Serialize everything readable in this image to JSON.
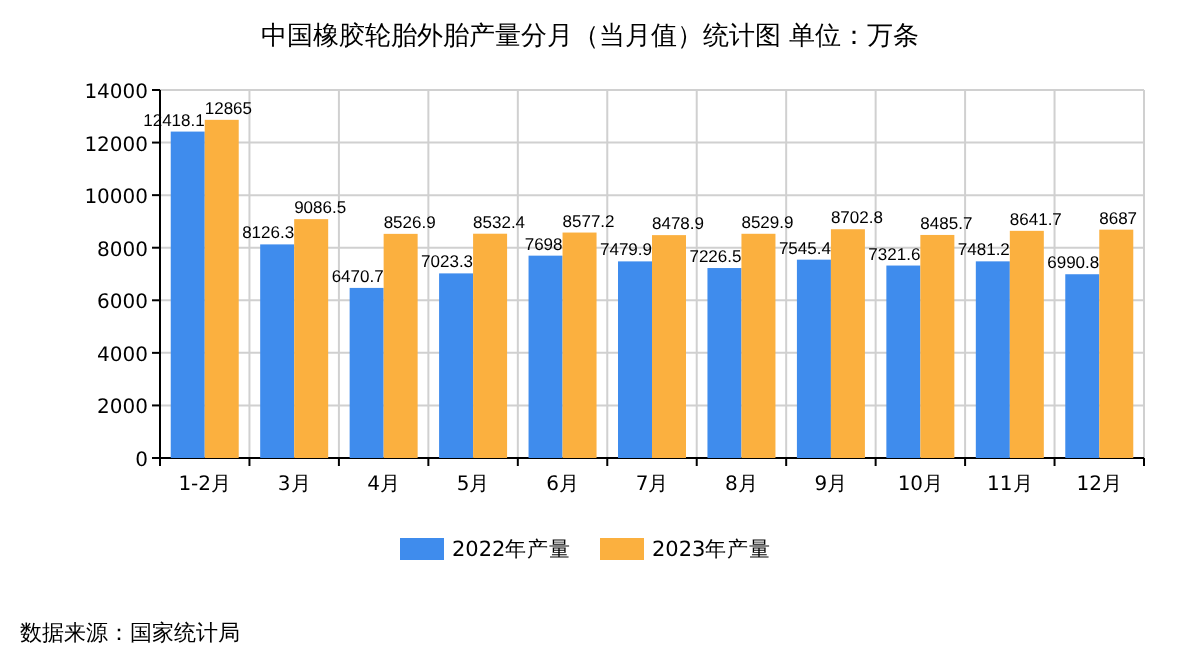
{
  "chart_data": {
    "type": "bar",
    "title": "中国橡胶轮胎外胎产量分月（当月值）统计图  单位：万条",
    "categories": [
      "1-2月",
      "3月",
      "4月",
      "5月",
      "6月",
      "7月",
      "8月",
      "9月",
      "10月",
      "11月",
      "12月"
    ],
    "series": [
      {
        "name": "2022年产量",
        "color": "#3f8ced",
        "values": [
          12418.1,
          8126.3,
          6470.7,
          7023.3,
          7698,
          7479.9,
          7226.5,
          7545.4,
          7321.6,
          7481.2,
          6990.8
        ]
      },
      {
        "name": "2023年产量",
        "color": "#fbb03f",
        "values": [
          12865,
          9086.5,
          8526.9,
          8532.4,
          8577.2,
          8478.9,
          8529.9,
          8702.8,
          8485.7,
          8641.7,
          8687
        ]
      }
    ],
    "ylim": [
      0,
      14000
    ],
    "yticks": [
      0,
      2000,
      4000,
      6000,
      8000,
      10000,
      12000,
      14000
    ],
    "grid": true,
    "legend": "bottom",
    "data_labels": true,
    "annotations": [
      "数据来源：国家统计局"
    ]
  }
}
